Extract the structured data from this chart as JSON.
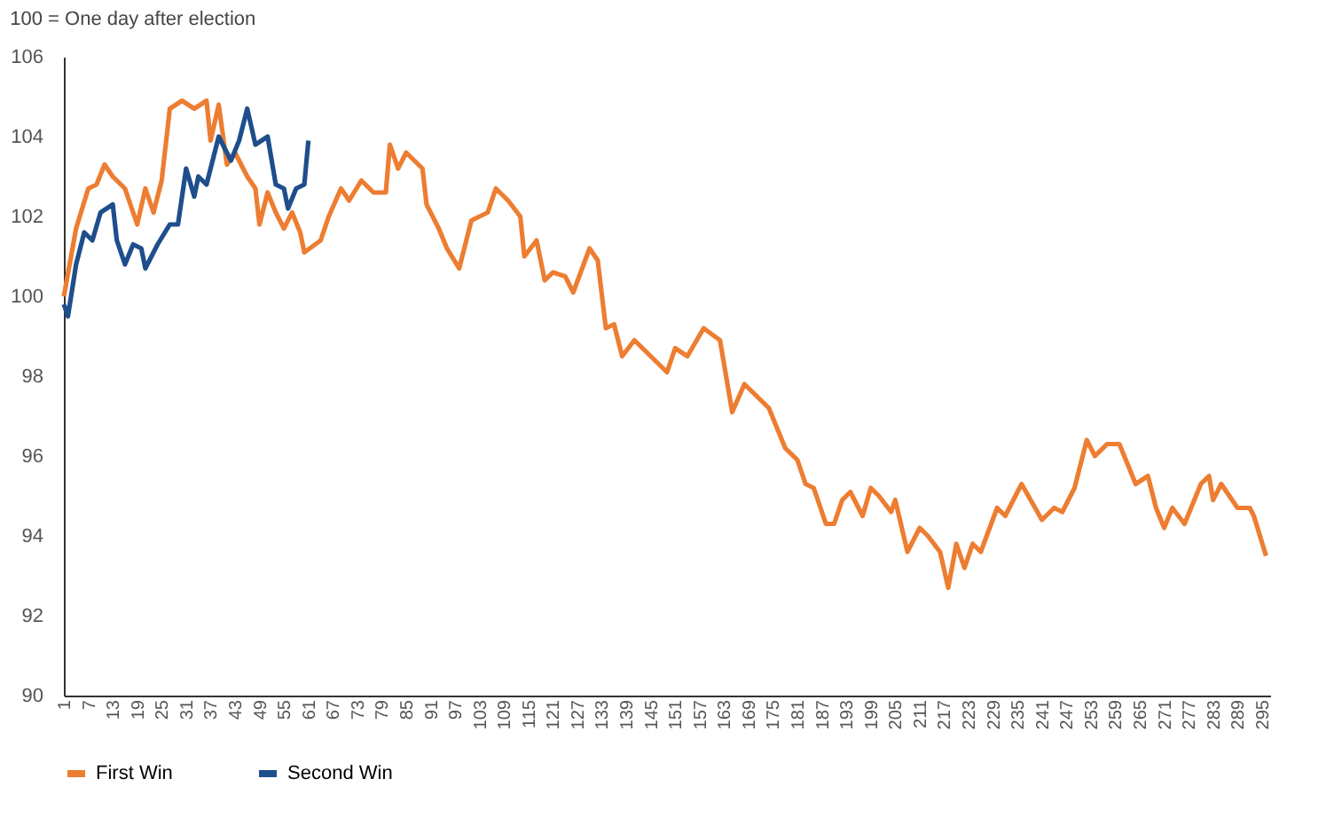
{
  "chart_data": {
    "type": "line",
    "title": "100 = One day after election",
    "xlim": [
      1,
      297
    ],
    "xticks": [
      1,
      7,
      13,
      19,
      25,
      31,
      37,
      43,
      49,
      55,
      61,
      67,
      73,
      79,
      85,
      91,
      97,
      103,
      109,
      115,
      121,
      127,
      133,
      139,
      145,
      151,
      157,
      163,
      169,
      175,
      181,
      187,
      193,
      199,
      205,
      211,
      217,
      223,
      229,
      235,
      241,
      247,
      253,
      259,
      265,
      271,
      277,
      283,
      289,
      295
    ],
    "ylim": [
      90,
      106
    ],
    "yticks": [
      90,
      92,
      94,
      96,
      98,
      100,
      102,
      104,
      106
    ],
    "grid": false,
    "legend": "bottom",
    "line_style": "solid",
    "marker": "none",
    "series": [
      {
        "name": "First Win",
        "color": "#ed7d31",
        "x": [
          1,
          4,
          7,
          9,
          11,
          13,
          16,
          18,
          19,
          21,
          23,
          25,
          27,
          30,
          33,
          36,
          37,
          39,
          41,
          43,
          46,
          48,
          49,
          51,
          53,
          55,
          57,
          59,
          60,
          64,
          66,
          69,
          71,
          74,
          77,
          80,
          81,
          83,
          85,
          89,
          90,
          93,
          95,
          98,
          101,
          105,
          107,
          110,
          113,
          114,
          117,
          119,
          121,
          124,
          126,
          130,
          132,
          134,
          136,
          138,
          141,
          145,
          149,
          151,
          154,
          158,
          162,
          165,
          168,
          172,
          174,
          178,
          181,
          183,
          185,
          188,
          190,
          192,
          194,
          197,
          199,
          201,
          204,
          205,
          208,
          211,
          213,
          216,
          218,
          220,
          222,
          224,
          226,
          230,
          232,
          234,
          236,
          241,
          244,
          246,
          249,
          252,
          254,
          257,
          260,
          262,
          264,
          267,
          269,
          271,
          273,
          276,
          280,
          282,
          283,
          285,
          289,
          292,
          293,
          296
        ],
        "values": [
          100.0,
          101.7,
          102.7,
          102.8,
          103.3,
          103.0,
          102.7,
          102.1,
          101.8,
          102.7,
          102.1,
          102.9,
          104.7,
          104.9,
          104.7,
          104.9,
          103.9,
          104.8,
          103.3,
          103.6,
          103.0,
          102.7,
          101.8,
          102.6,
          102.1,
          101.7,
          102.1,
          101.6,
          101.1,
          101.4,
          102.0,
          102.7,
          102.4,
          102.9,
          102.6,
          102.6,
          103.8,
          103.2,
          103.6,
          103.2,
          102.3,
          101.7,
          101.2,
          100.7,
          101.9,
          102.1,
          102.7,
          102.4,
          102.0,
          101.0,
          101.4,
          100.4,
          100.6,
          100.5,
          100.1,
          101.2,
          100.9,
          99.2,
          99.3,
          98.5,
          98.9,
          98.5,
          98.1,
          98.7,
          98.5,
          99.2,
          98.9,
          97.1,
          97.8,
          97.4,
          97.2,
          96.2,
          95.9,
          95.3,
          95.2,
          94.3,
          94.3,
          94.9,
          95.1,
          94.5,
          95.2,
          95.0,
          94.6,
          94.9,
          93.6,
          94.2,
          94.0,
          93.6,
          92.7,
          93.8,
          93.2,
          93.8,
          93.6,
          94.7,
          94.5,
          94.9,
          95.3,
          94.4,
          94.7,
          94.6,
          95.2,
          96.4,
          96.0,
          96.3,
          96.3,
          95.8,
          95.3,
          95.5,
          94.7,
          94.2,
          94.7,
          94.3,
          95.3,
          95.5,
          94.9,
          95.3,
          94.7,
          94.7,
          94.5,
          93.5
        ]
      },
      {
        "name": "Second Win",
        "color": "#1f4e8c",
        "x": [
          1,
          2,
          4,
          6,
          8,
          10,
          13,
          14,
          16,
          18,
          20,
          21,
          24,
          27,
          29,
          31,
          33,
          34,
          36,
          39,
          42,
          44,
          46,
          48,
          51,
          53,
          55,
          56,
          58,
          60,
          61
        ],
        "values": [
          99.8,
          99.5,
          100.8,
          101.6,
          101.4,
          102.1,
          102.3,
          101.4,
          100.8,
          101.3,
          101.2,
          100.7,
          101.3,
          101.8,
          101.8,
          103.2,
          102.5,
          103.0,
          102.8,
          104.0,
          103.4,
          103.9,
          104.7,
          103.8,
          104.0,
          102.8,
          102.7,
          102.2,
          102.7,
          102.8,
          103.9
        ]
      }
    ]
  }
}
